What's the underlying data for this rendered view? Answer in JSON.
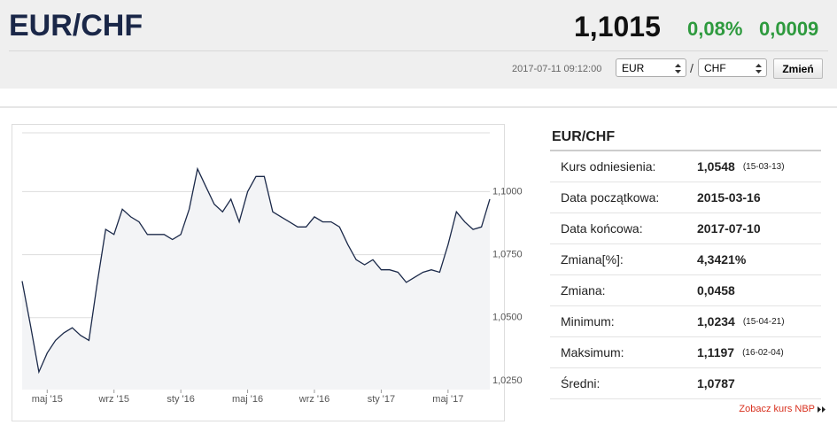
{
  "header": {
    "title": "EUR/CHF",
    "rate": "1,1015",
    "change_pct": "0,08%",
    "change_abs": "0,0009",
    "timestamp": "2017-07-11 09:12:00",
    "from_currency": "EUR",
    "separator": "/",
    "to_currency": "CHF",
    "button": "Zmień"
  },
  "chart_data": {
    "type": "line",
    "color": "#1c2a4a",
    "area_color": "#f3f4f6",
    "grid": true,
    "categories": [
      null,
      null,
      null,
      "maj '15",
      null,
      null,
      null,
      null,
      null,
      null,
      null,
      "wrz '15",
      null,
      null,
      null,
      null,
      null,
      null,
      null,
      "sty '16",
      null,
      null,
      null,
      null,
      null,
      null,
      null,
      "maj '16",
      null,
      null,
      null,
      null,
      null,
      null,
      null,
      "wrz '16",
      null,
      null,
      null,
      null,
      null,
      null,
      null,
      "sty '17",
      null,
      null,
      null,
      null,
      null,
      null,
      null,
      "maj '17",
      null,
      null,
      null,
      null,
      null
    ],
    "values": [
      1.0645,
      1.047,
      1.0285,
      1.036,
      1.041,
      1.044,
      1.046,
      1.043,
      1.041,
      1.064,
      1.085,
      1.083,
      1.093,
      1.09,
      1.088,
      1.083,
      1.083,
      1.083,
      1.081,
      1.083,
      1.093,
      1.109,
      1.102,
      1.095,
      1.092,
      1.097,
      1.088,
      1.1,
      1.106,
      1.106,
      1.092,
      1.09,
      1.088,
      1.086,
      1.086,
      1.09,
      1.088,
      1.088,
      1.086,
      1.079,
      1.073,
      1.071,
      1.073,
      1.069,
      1.069,
      1.068,
      1.064,
      1.066,
      1.068,
      1.069,
      1.068,
      1.079,
      1.092,
      1.088,
      1.085,
      1.086,
      1.097
    ],
    "ylim": [
      1.0215,
      1.1233
    ],
    "yticks": [
      {
        "value": 1.025,
        "label": "1,0250"
      },
      {
        "value": 1.05,
        "label": "1,0500"
      },
      {
        "value": 1.075,
        "label": "1,0750"
      },
      {
        "value": 1.1,
        "label": "1,1000"
      }
    ]
  },
  "stats": {
    "title": "EUR/CHF",
    "rows": [
      [
        "Kurs odniesienia:",
        "1,0548",
        "(15-03-13)"
      ],
      [
        "Data początkowa:",
        "2015-03-16"
      ],
      [
        "Data końcowa:",
        "2017-07-10"
      ],
      [
        "Zmiana[%]:",
        "4,3421%"
      ],
      [
        "Zmiana:",
        "0,0458"
      ],
      [
        "Minimum:",
        "1,0234",
        "(15-04-21)"
      ],
      [
        "Maksimum:",
        "1,1197",
        "(16-02-04)"
      ],
      [
        "Średni:",
        "1,0787"
      ]
    ],
    "link": "Zobacz kurs NBP"
  }
}
